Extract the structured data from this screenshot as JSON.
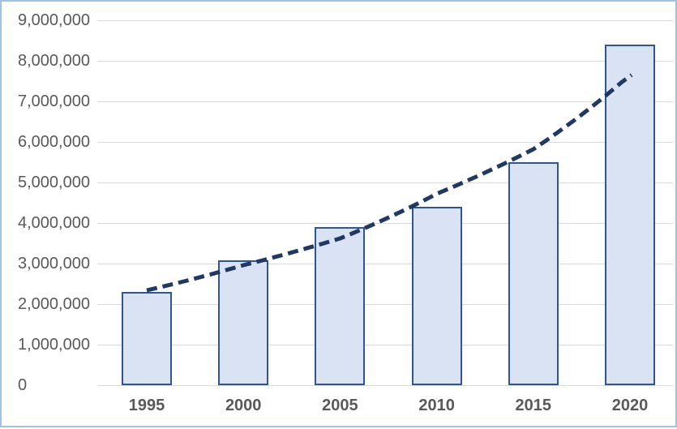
{
  "chart": {
    "title": ""
  },
  "chart_data": {
    "type": "bar",
    "title": "",
    "xlabel": "",
    "ylabel": "",
    "categories": [
      "1995",
      "2000",
      "2005",
      "2010",
      "2015",
      "2020"
    ],
    "values": [
      2300000,
      3080000,
      3900000,
      4400000,
      5500000,
      8400000
    ],
    "ylim": [
      0,
      9000000
    ],
    "ytick_step": 1000000,
    "ytick_labels": [
      "0",
      "1,000,000",
      "2,000,000",
      "3,000,000",
      "4,000,000",
      "5,000,000",
      "6,000,000",
      "7,000,000",
      "8,000,000",
      "9,000,000"
    ],
    "grid": true,
    "legend": false,
    "trendline": {
      "type": "exponential",
      "line_style": "dashed",
      "values": [
        2340000,
        2960000,
        3620000,
        4720000,
        5820000,
        7650000
      ]
    }
  },
  "colors": {
    "background": "#ffffff",
    "chart_border": "#9dc3e6",
    "bar_fill": "#dae3f3",
    "bar_border": "#2f5597",
    "trendline": "#1f3864",
    "gridline": "#d9d9d9",
    "axis_label": "#595959"
  }
}
